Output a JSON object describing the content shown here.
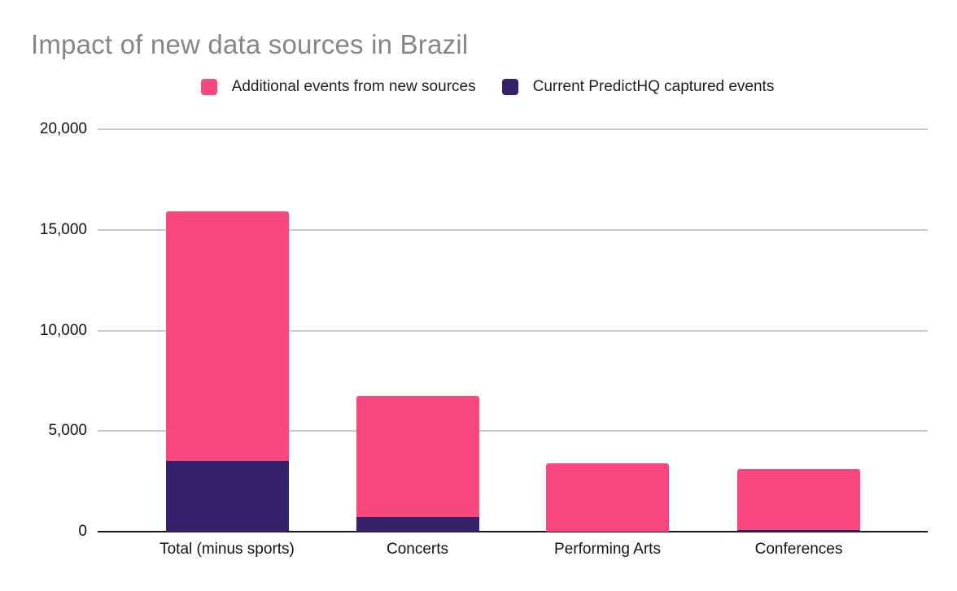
{
  "title": "Impact of new data sources in Brazil",
  "legend": [
    {
      "label": "Additional events from new sources",
      "color": "#F8487E"
    },
    {
      "label": "Current PredictHQ captured events",
      "color": "#362069"
    }
  ],
  "colors": {
    "background": "#ffffff",
    "title_text": "#868686",
    "axis_text": "#111111",
    "gridline": "#cccccc",
    "axis_line": "#1a1a1a",
    "pink_series": "#F8487E",
    "purple_series": "#362069"
  },
  "chart_data": {
    "type": "bar",
    "stacked": true,
    "title": "Impact of new data sources in Brazil",
    "categories": [
      "Total (minus sports)",
      "Concerts",
      "Performing Arts",
      "Conferences"
    ],
    "series": [
      {
        "name": "Current PredictHQ captured events",
        "color": "#362069",
        "values": [
          3500,
          730,
          0,
          100
        ]
      },
      {
        "name": "Additional events from new sources",
        "color": "#F8487E",
        "values": [
          12400,
          6020,
          3400,
          3000
        ]
      }
    ],
    "stacked_totals": [
      15900,
      6750,
      3400,
      3100
    ],
    "xlabel": "",
    "ylabel": "",
    "ylim": [
      0,
      20000
    ],
    "ytick_interval": 5000,
    "ytick_labels": [
      "0",
      "5,000",
      "10,000",
      "15,000",
      "20,000"
    ],
    "grid": "horizontal",
    "legend_position": "top"
  }
}
